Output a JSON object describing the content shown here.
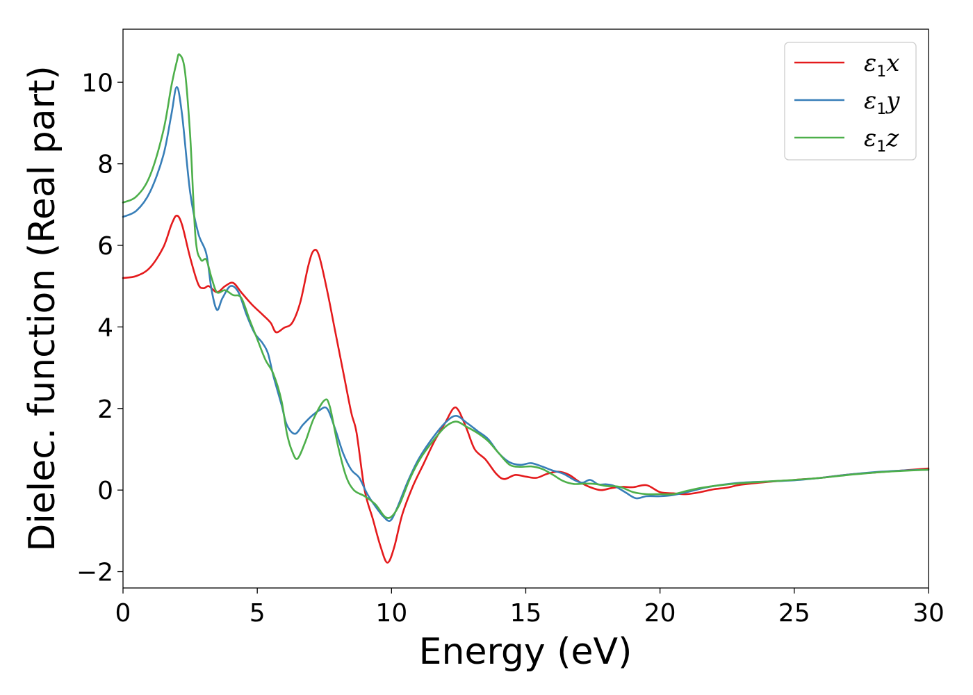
{
  "chart_data": {
    "type": "line",
    "xlabel": "Energy (eV)",
    "ylabel": "Dielec. function (Real part)",
    "xlim": [
      0,
      30
    ],
    "ylim": [
      -2.4,
      11.3
    ],
    "xticks": [
      0,
      5,
      10,
      15,
      20,
      25,
      30
    ],
    "yticks": [
      -2,
      0,
      2,
      4,
      6,
      8,
      10
    ],
    "grid": false,
    "legend_position": "top-right",
    "series": [
      {
        "name": "ε1x",
        "label_base": "ε",
        "label_sub": "1",
        "label_suffix": "x",
        "color": "#e41a1c",
        "points": [
          [
            0,
            5.2
          ],
          [
            0.5,
            5.25
          ],
          [
            1.0,
            5.45
          ],
          [
            1.5,
            5.95
          ],
          [
            1.8,
            6.5
          ],
          [
            2.0,
            6.73
          ],
          [
            2.2,
            6.5
          ],
          [
            2.5,
            5.7
          ],
          [
            2.8,
            5.05
          ],
          [
            3.0,
            4.95
          ],
          [
            3.2,
            5.0
          ],
          [
            3.5,
            4.85
          ],
          [
            3.8,
            5.0
          ],
          [
            4.1,
            5.08
          ],
          [
            4.4,
            4.85
          ],
          [
            4.8,
            4.55
          ],
          [
            5.2,
            4.3
          ],
          [
            5.5,
            4.1
          ],
          [
            5.7,
            3.87
          ],
          [
            6.0,
            3.98
          ],
          [
            6.3,
            4.1
          ],
          [
            6.6,
            4.6
          ],
          [
            6.9,
            5.5
          ],
          [
            7.1,
            5.87
          ],
          [
            7.3,
            5.75
          ],
          [
            7.6,
            4.9
          ],
          [
            7.9,
            3.9
          ],
          [
            8.2,
            2.9
          ],
          [
            8.5,
            1.9
          ],
          [
            8.7,
            1.4
          ],
          [
            9.0,
            0.0
          ],
          [
            9.3,
            -0.7
          ],
          [
            9.6,
            -1.4
          ],
          [
            9.85,
            -1.78
          ],
          [
            10.1,
            -1.4
          ],
          [
            10.4,
            -0.6
          ],
          [
            10.8,
            0.1
          ],
          [
            11.2,
            0.65
          ],
          [
            11.6,
            1.2
          ],
          [
            12.0,
            1.65
          ],
          [
            12.3,
            2.0
          ],
          [
            12.5,
            1.95
          ],
          [
            12.8,
            1.5
          ],
          [
            13.1,
            1.0
          ],
          [
            13.5,
            0.75
          ],
          [
            13.9,
            0.4
          ],
          [
            14.2,
            0.27
          ],
          [
            14.6,
            0.37
          ],
          [
            15.0,
            0.33
          ],
          [
            15.4,
            0.3
          ],
          [
            15.8,
            0.4
          ],
          [
            16.2,
            0.45
          ],
          [
            16.6,
            0.38
          ],
          [
            17.0,
            0.2
          ],
          [
            17.4,
            0.07
          ],
          [
            17.8,
            0.0
          ],
          [
            18.2,
            0.05
          ],
          [
            18.6,
            0.08
          ],
          [
            19.0,
            0.07
          ],
          [
            19.5,
            0.12
          ],
          [
            20.0,
            -0.05
          ],
          [
            20.5,
            -0.08
          ],
          [
            21.0,
            -0.1
          ],
          [
            21.5,
            -0.05
          ],
          [
            22.0,
            0.02
          ],
          [
            22.5,
            0.06
          ],
          [
            23.0,
            0.13
          ],
          [
            24.0,
            0.2
          ],
          [
            25.0,
            0.25
          ],
          [
            26.0,
            0.3
          ],
          [
            27.0,
            0.38
          ],
          [
            28.0,
            0.43
          ],
          [
            29.0,
            0.48
          ],
          [
            30.0,
            0.53
          ]
        ]
      },
      {
        "name": "ε1y",
        "label_base": "ε",
        "label_sub": "1",
        "label_suffix": "y",
        "color": "#377eb8",
        "points": [
          [
            0,
            6.7
          ],
          [
            0.5,
            6.85
          ],
          [
            1.0,
            7.3
          ],
          [
            1.5,
            8.2
          ],
          [
            1.8,
            9.2
          ],
          [
            2.0,
            9.88
          ],
          [
            2.2,
            9.2
          ],
          [
            2.5,
            7.3
          ],
          [
            2.8,
            6.3
          ],
          [
            3.1,
            5.8
          ],
          [
            3.3,
            4.9
          ],
          [
            3.5,
            4.42
          ],
          [
            3.7,
            4.7
          ],
          [
            4.0,
            5.0
          ],
          [
            4.3,
            4.85
          ],
          [
            4.6,
            4.3
          ],
          [
            4.9,
            3.85
          ],
          [
            5.2,
            3.6
          ],
          [
            5.4,
            3.35
          ],
          [
            5.6,
            2.8
          ],
          [
            5.9,
            2.1
          ],
          [
            6.1,
            1.6
          ],
          [
            6.4,
            1.38
          ],
          [
            6.7,
            1.6
          ],
          [
            7.0,
            1.8
          ],
          [
            7.3,
            1.95
          ],
          [
            7.6,
            2.0
          ],
          [
            7.9,
            1.5
          ],
          [
            8.2,
            0.9
          ],
          [
            8.5,
            0.5
          ],
          [
            8.8,
            0.3
          ],
          [
            9.1,
            -0.1
          ],
          [
            9.4,
            -0.4
          ],
          [
            9.7,
            -0.65
          ],
          [
            9.95,
            -0.75
          ],
          [
            10.2,
            -0.45
          ],
          [
            10.6,
            0.2
          ],
          [
            11.0,
            0.75
          ],
          [
            11.5,
            1.25
          ],
          [
            12.0,
            1.65
          ],
          [
            12.4,
            1.82
          ],
          [
            12.8,
            1.65
          ],
          [
            13.2,
            1.45
          ],
          [
            13.6,
            1.25
          ],
          [
            14.0,
            0.9
          ],
          [
            14.4,
            0.68
          ],
          [
            14.8,
            0.62
          ],
          [
            15.2,
            0.66
          ],
          [
            15.6,
            0.58
          ],
          [
            16.0,
            0.48
          ],
          [
            16.4,
            0.4
          ],
          [
            16.8,
            0.25
          ],
          [
            17.1,
            0.18
          ],
          [
            17.4,
            0.25
          ],
          [
            17.7,
            0.14
          ],
          [
            18.0,
            0.14
          ],
          [
            18.3,
            0.1
          ],
          [
            18.7,
            -0.05
          ],
          [
            19.1,
            -0.2
          ],
          [
            19.5,
            -0.15
          ],
          [
            20.0,
            -0.15
          ],
          [
            20.5,
            -0.12
          ],
          [
            21.0,
            -0.05
          ],
          [
            21.5,
            0.03
          ],
          [
            22.0,
            0.1
          ],
          [
            23.0,
            0.18
          ],
          [
            24.0,
            0.21
          ],
          [
            25.0,
            0.24
          ],
          [
            26.0,
            0.3
          ],
          [
            27.0,
            0.38
          ],
          [
            28.0,
            0.44
          ],
          [
            29.0,
            0.48
          ],
          [
            30.0,
            0.5
          ]
        ]
      },
      {
        "name": "ε1z",
        "label_base": "ε",
        "label_sub": "1",
        "label_suffix": "z",
        "color": "#4daf4a",
        "points": [
          [
            0,
            7.05
          ],
          [
            0.5,
            7.2
          ],
          [
            1.0,
            7.7
          ],
          [
            1.5,
            8.8
          ],
          [
            1.8,
            9.9
          ],
          [
            2.0,
            10.5
          ],
          [
            2.1,
            10.68
          ],
          [
            2.3,
            10.3
          ],
          [
            2.5,
            8.7
          ],
          [
            2.7,
            6.2
          ],
          [
            2.9,
            5.65
          ],
          [
            3.1,
            5.65
          ],
          [
            3.3,
            5.2
          ],
          [
            3.5,
            4.85
          ],
          [
            3.8,
            4.9
          ],
          [
            4.1,
            4.78
          ],
          [
            4.4,
            4.72
          ],
          [
            4.7,
            4.2
          ],
          [
            5.0,
            3.7
          ],
          [
            5.3,
            3.2
          ],
          [
            5.6,
            2.85
          ],
          [
            5.9,
            2.2
          ],
          [
            6.1,
            1.4
          ],
          [
            6.3,
            0.95
          ],
          [
            6.5,
            0.77
          ],
          [
            6.8,
            1.2
          ],
          [
            7.1,
            1.75
          ],
          [
            7.5,
            2.2
          ],
          [
            7.7,
            2.05
          ],
          [
            8.0,
            1.1
          ],
          [
            8.3,
            0.35
          ],
          [
            8.6,
            0.0
          ],
          [
            9.0,
            -0.15
          ],
          [
            9.4,
            -0.35
          ],
          [
            9.75,
            -0.65
          ],
          [
            10.0,
            -0.65
          ],
          [
            10.3,
            -0.35
          ],
          [
            10.7,
            0.3
          ],
          [
            11.1,
            0.8
          ],
          [
            11.6,
            1.25
          ],
          [
            12.0,
            1.55
          ],
          [
            12.4,
            1.68
          ],
          [
            12.8,
            1.55
          ],
          [
            13.2,
            1.4
          ],
          [
            13.6,
            1.2
          ],
          [
            14.0,
            0.9
          ],
          [
            14.4,
            0.62
          ],
          [
            14.8,
            0.57
          ],
          [
            15.2,
            0.58
          ],
          [
            15.6,
            0.52
          ],
          [
            16.0,
            0.38
          ],
          [
            16.4,
            0.22
          ],
          [
            16.8,
            0.15
          ],
          [
            17.2,
            0.16
          ],
          [
            17.6,
            0.15
          ],
          [
            18.0,
            0.1
          ],
          [
            18.5,
            0.08
          ],
          [
            19.0,
            -0.05
          ],
          [
            19.5,
            -0.1
          ],
          [
            20.0,
            -0.1
          ],
          [
            20.5,
            -0.1
          ],
          [
            21.0,
            -0.02
          ],
          [
            21.5,
            0.05
          ],
          [
            22.0,
            0.1
          ],
          [
            23.0,
            0.17
          ],
          [
            24.0,
            0.21
          ],
          [
            25.0,
            0.25
          ],
          [
            26.0,
            0.3
          ],
          [
            27.0,
            0.37
          ],
          [
            28.0,
            0.43
          ],
          [
            29.0,
            0.47
          ],
          [
            30.0,
            0.5
          ]
        ]
      }
    ]
  }
}
